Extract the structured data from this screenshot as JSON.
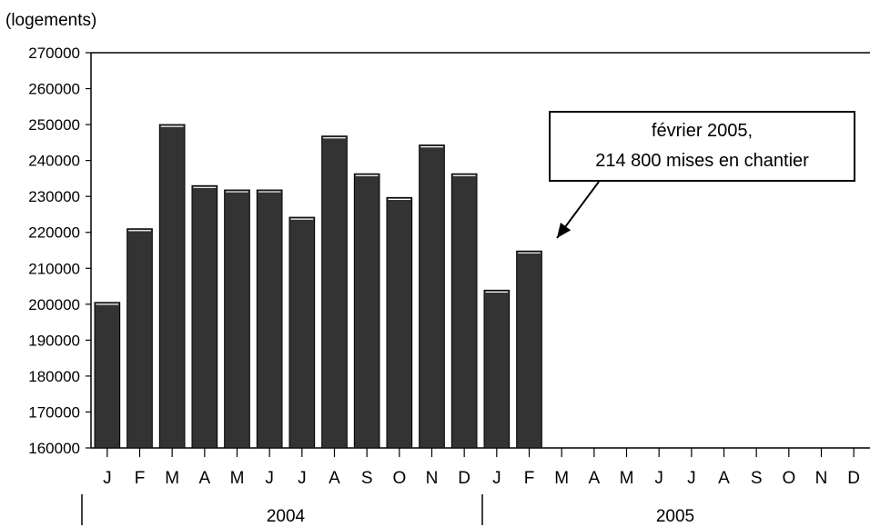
{
  "chart_data": {
    "type": "bar",
    "unit_label": "(logements)",
    "categories": [
      "J",
      "F",
      "M",
      "A",
      "M",
      "J",
      "J",
      "A",
      "S",
      "O",
      "N",
      "D",
      "J",
      "F",
      "M",
      "A",
      "M",
      "J",
      "J",
      "A",
      "S",
      "O",
      "N",
      "D"
    ],
    "years": [
      {
        "label": "2004",
        "months": 12
      },
      {
        "label": "2005",
        "months": 12
      }
    ],
    "values": [
      200500,
      221000,
      250000,
      233000,
      231800,
      231800,
      224200,
      246800,
      236300,
      229700,
      244300,
      236300,
      203900,
      214800,
      null,
      null,
      null,
      null,
      null,
      null,
      null,
      null,
      null,
      null
    ],
    "ylim": [
      160000,
      270000
    ],
    "yticks": [
      270000,
      260000,
      250000,
      240000,
      230000,
      220000,
      210000,
      200000,
      190000,
      180000,
      170000,
      160000
    ],
    "ytick_labels": [
      "270000",
      "260000",
      "250000",
      "240000",
      "230000",
      "220000",
      "210000",
      "200000",
      "190000",
      "180000",
      "170000",
      "160000"
    ],
    "bar_color": "#333333",
    "annotation": {
      "line1": "février 2005,",
      "line2": "214 800 mises en chantier",
      "target_index": 13
    }
  }
}
